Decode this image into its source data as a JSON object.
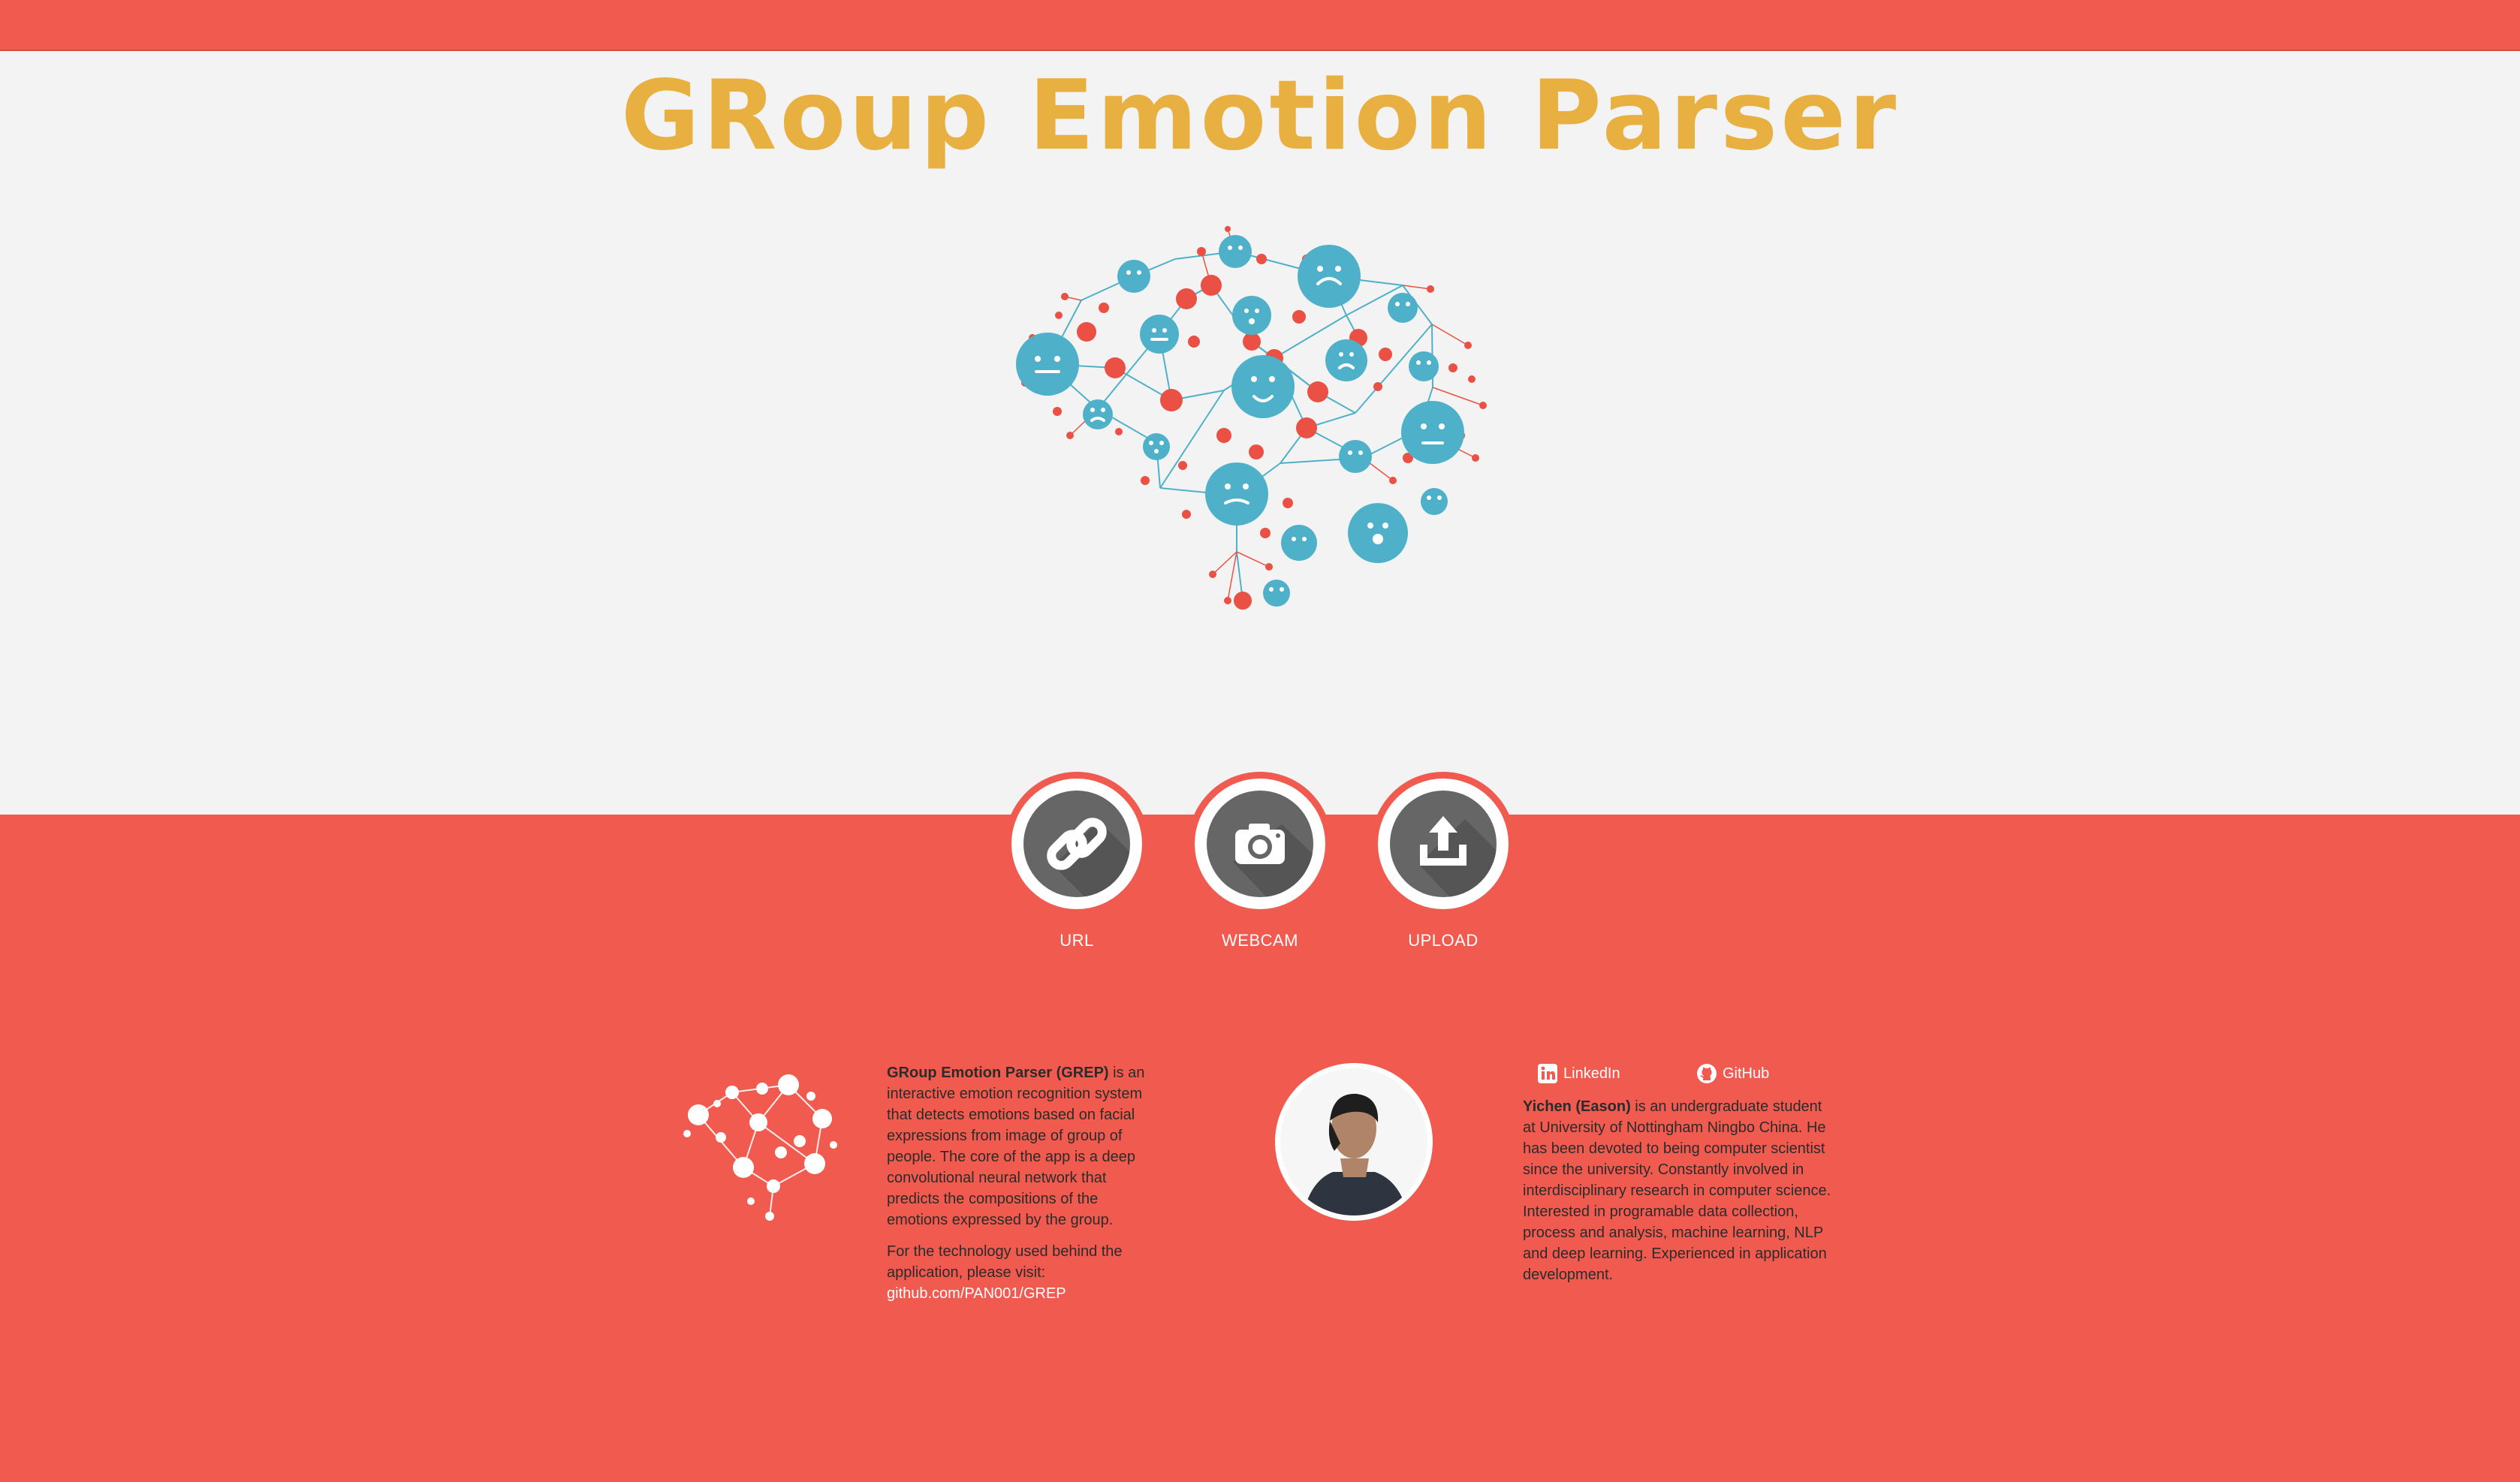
{
  "header": {
    "title": "GRoup Emotion Parser"
  },
  "actions": [
    {
      "label": "URL",
      "icon": "link-icon"
    },
    {
      "label": "WEBCAM",
      "icon": "camera-icon"
    },
    {
      "label": "UPLOAD",
      "icon": "upload-icon"
    }
  ],
  "about": {
    "name": "GRoup Emotion Parser (GREP)",
    "description": " is an interactive emotion recognition system that detects emotions based on facial expressions from image of group of people. The core of the app is a deep convolutional neural network that predicts the compositions of the emotions expressed by the group.",
    "tech_text": "For the technology used behind the application, please visit:",
    "repo_link": "github.com/PAN001/GREP"
  },
  "author": {
    "linkedin_label": "LinkedIn",
    "github_label": "GitHub",
    "name": "Yichen (Eason)",
    "bio": " is an undergraduate student at University of Nottingham Ningbo China. He has been devoted to being computer scientist since the university. Constantly involved in interdisciplinary research in computer science. Interested in programable data collection, process and analysis, machine learning, NLP and deep learning. Experienced in application development."
  },
  "colors": {
    "brand_red": "#f15a4f",
    "title_yellow": "#e8b040",
    "face_blue": "#4fb1c9",
    "dot_red": "#ea5043",
    "icon_gray": "#666666"
  }
}
